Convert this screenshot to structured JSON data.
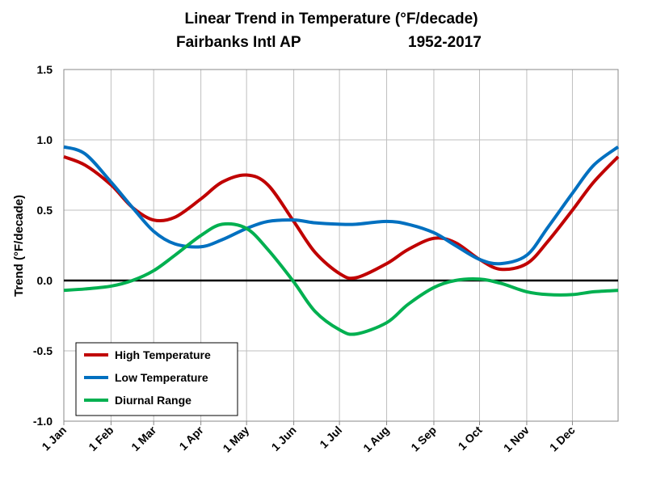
{
  "chart_data": {
    "type": "line",
    "title": "Linear Trend in Temperature (°F/decade)",
    "subtitle_station": "Fairbanks Intl AP",
    "subtitle_period": "1952-2017",
    "xlabel": "",
    "ylabel": "Trend (°F/decade)",
    "ylim": [
      -1.0,
      1.5
    ],
    "yticks": [
      "1.5",
      "1.0",
      "0.5",
      "0.0",
      "-0.5",
      "-1.0"
    ],
    "ytick_values": [
      1.5,
      1.0,
      0.5,
      0.0,
      -0.5,
      -1.0
    ],
    "xticks": [
      "1 Jan",
      "1 Feb",
      "1 Mar",
      "1 Apr",
      "1 May",
      "1 Jun",
      "1 Jul",
      "1 Aug",
      "1 Sep",
      "1 Oct",
      "1 Nov",
      "1 Dec"
    ],
    "grid": true,
    "legend_position": "bottom-left",
    "x": [
      "Jan 1",
      "Jan 15",
      "Feb 1",
      "Feb 15",
      "Mar 1",
      "Mar 15",
      "Apr 1",
      "Apr 15",
      "May 1",
      "May 15",
      "Jun 1",
      "Jun 15",
      "Jul 1",
      "Jul 12",
      "Aug 1",
      "Aug 15",
      "Sep 1",
      "Sep 15",
      "Oct 1",
      "Oct 15",
      "Nov 1",
      "Nov 15",
      "Dec 1",
      "Dec 15",
      "Dec 31"
    ],
    "series": [
      {
        "name": "High Temperature",
        "color": "#c00000",
        "values": [
          0.88,
          0.82,
          0.68,
          0.52,
          0.43,
          0.45,
          0.58,
          0.7,
          0.75,
          0.68,
          0.42,
          0.2,
          0.05,
          0.02,
          0.12,
          0.22,
          0.3,
          0.27,
          0.15,
          0.08,
          0.12,
          0.28,
          0.5,
          0.7,
          0.88
        ]
      },
      {
        "name": "Low Temperature",
        "color": "#0070c0",
        "values": [
          0.95,
          0.9,
          0.7,
          0.52,
          0.35,
          0.26,
          0.24,
          0.29,
          0.37,
          0.42,
          0.43,
          0.41,
          0.4,
          0.4,
          0.42,
          0.4,
          0.34,
          0.25,
          0.15,
          0.12,
          0.18,
          0.38,
          0.62,
          0.82,
          0.95
        ]
      },
      {
        "name": "Diurnal Range",
        "color": "#00b050",
        "values": [
          -0.07,
          -0.06,
          -0.04,
          0.0,
          0.07,
          0.18,
          0.32,
          0.4,
          0.37,
          0.22,
          -0.01,
          -0.22,
          -0.35,
          -0.38,
          -0.3,
          -0.17,
          -0.05,
          0.0,
          0.01,
          -0.02,
          -0.08,
          -0.1,
          -0.1,
          -0.08,
          -0.07
        ]
      }
    ]
  }
}
